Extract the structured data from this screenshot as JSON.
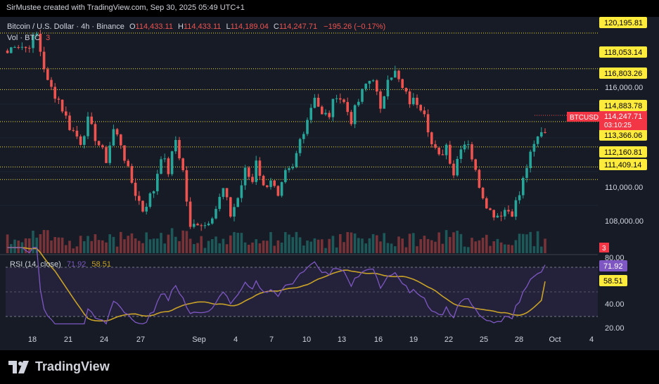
{
  "header": {
    "attribution": "SirMustee created with TradingView.com, Sep 30, 2025 05:49 UTC+1"
  },
  "legend": {
    "symbol": "Bitcoin / U.S. Dollar · 4h · Binance",
    "o_label": "O",
    "o_value": "114,433.11",
    "h_label": "H",
    "h_value": "114,433.11",
    "l_label": "L",
    "l_value": "114,189.04",
    "c_label": "C",
    "c_value": "114,247.71",
    "change": "−195.26 (−0.17%)",
    "vol_label": "Vol · BTC",
    "vol_value": "3"
  },
  "rsi_legend": {
    "label": "RSI (14, close)",
    "rsi_value": "71.92",
    "ma_value": "58.51"
  },
  "price_axis": {
    "ticks": [
      "116,000.00",
      "110,000.00",
      "108,000.00"
    ],
    "levels": [
      "120,195.81",
      "118,053.14",
      "116,803.26",
      "114,883.78",
      "113,366.06",
      "112,160.81",
      "111,409.14"
    ],
    "current_symbol": "BTCUSD",
    "current_price": "114,247.71",
    "countdown": "03:10:25",
    "volume_badge": "3"
  },
  "rsi_axis": {
    "ticks": [
      "80.00",
      "40.00",
      "20.00"
    ],
    "rsi_badge": "71.92",
    "ma_badge": "58.51"
  },
  "time_axis": {
    "labels": [
      "18",
      "21",
      "24",
      "27",
      "Sep",
      "4",
      "7",
      "10",
      "13",
      "16",
      "19",
      "22",
      "25",
      "28",
      "Oct",
      "4"
    ]
  },
  "colors": {
    "up": "#26a69a",
    "down": "#ef5350",
    "level_line": "#f0e130",
    "rsi_line": "#7e57c2",
    "rsi_ma": "#c9a227",
    "price_badge": "#f23645"
  },
  "chart_data": {
    "type": "candlestick",
    "timeframe": "4h",
    "price_range": [
      106800,
      121000
    ],
    "path": [
      [
        0,
        119000
      ],
      [
        2,
        119600
      ],
      [
        5,
        119300
      ],
      [
        8,
        120100
      ],
      [
        11,
        117200
      ],
      [
        14,
        116200
      ],
      [
        17,
        114600
      ],
      [
        20,
        113700
      ],
      [
        22,
        114900
      ],
      [
        25,
        113500
      ],
      [
        27,
        112600
      ],
      [
        29,
        114400
      ],
      [
        31,
        113600
      ],
      [
        33,
        111900
      ],
      [
        35,
        110600
      ],
      [
        37,
        109600
      ],
      [
        40,
        110800
      ],
      [
        42,
        112900
      ],
      [
        44,
        111900
      ],
      [
        46,
        113800
      ],
      [
        48,
        111900
      ],
      [
        50,
        108400
      ],
      [
        52,
        108900
      ],
      [
        54,
        108700
      ],
      [
        57,
        109700
      ],
      [
        59,
        110800
      ],
      [
        61,
        109300
      ],
      [
        63,
        110300
      ],
      [
        65,
        111900
      ],
      [
        67,
        111300
      ],
      [
        68,
        112700
      ],
      [
        70,
        110900
      ],
      [
        72,
        111500
      ],
      [
        74,
        110200
      ],
      [
        76,
        111700
      ],
      [
        78,
        112000
      ],
      [
        80,
        113800
      ],
      [
        82,
        115100
      ],
      [
        84,
        116500
      ],
      [
        86,
        115200
      ],
      [
        88,
        115300
      ],
      [
        90,
        116600
      ],
      [
        92,
        116000
      ],
      [
        94,
        115000
      ],
      [
        96,
        116100
      ],
      [
        98,
        117100
      ],
      [
        100,
        117600
      ],
      [
        102,
        115400
      ],
      [
        104,
        117700
      ],
      [
        106,
        117800
      ],
      [
        108,
        116800
      ],
      [
        110,
        116100
      ],
      [
        112,
        116100
      ],
      [
        114,
        115600
      ],
      [
        116,
        113500
      ],
      [
        118,
        112700
      ],
      [
        120,
        113500
      ],
      [
        122,
        111800
      ],
      [
        124,
        113500
      ],
      [
        126,
        113700
      ],
      [
        128,
        111800
      ],
      [
        130,
        110500
      ],
      [
        132,
        109500
      ],
      [
        134,
        109300
      ],
      [
        136,
        109600
      ],
      [
        138,
        109500
      ],
      [
        140,
        110500
      ],
      [
        142,
        112200
      ],
      [
        144,
        113400
      ],
      [
        146,
        114400
      ],
      [
        147,
        114250
      ]
    ],
    "rsi": {
      "current": 71.92,
      "ma_current": 58.51,
      "bands": [
        30,
        50,
        70
      ],
      "ticks": [
        80,
        40,
        20
      ]
    },
    "volume": {
      "current": 3,
      "unit": "BTC"
    }
  }
}
